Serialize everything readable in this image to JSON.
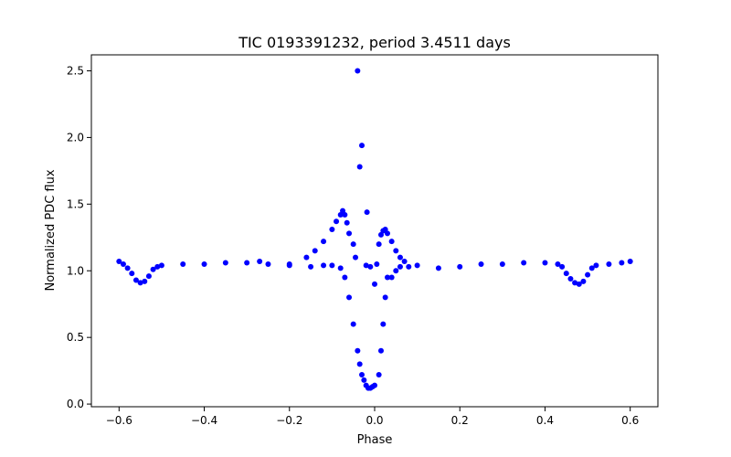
{
  "chart_data": {
    "type": "scatter",
    "title": "TIC 0193391232, period 3.4511 days",
    "xlabel": "Phase",
    "ylabel": "Normalized PDC flux",
    "xlim": [
      -0.665,
      0.665
    ],
    "ylim": [
      -0.02,
      2.62
    ],
    "xticks": [
      -0.6,
      -0.4,
      -0.2,
      0.0,
      0.2,
      0.4,
      0.6
    ],
    "xtick_labels": [
      "−0.6",
      "−0.4",
      "−0.2",
      "0.0",
      "0.2",
      "0.4",
      "0.6"
    ],
    "yticks": [
      0.0,
      0.5,
      1.0,
      1.5,
      2.0,
      2.5
    ],
    "ytick_labels": [
      "0.0",
      "0.5",
      "1.0",
      "1.5",
      "2.0",
      "2.5"
    ],
    "grid": false,
    "legend": false,
    "marker_color": "#0000ff",
    "series": [
      {
        "points": [
          [
            -0.6,
            1.07
          ],
          [
            -0.59,
            1.05
          ],
          [
            -0.58,
            1.02
          ],
          [
            -0.57,
            0.98
          ],
          [
            -0.56,
            0.93
          ],
          [
            -0.55,
            0.91
          ],
          [
            -0.54,
            0.92
          ],
          [
            -0.53,
            0.96
          ],
          [
            -0.52,
            1.01
          ],
          [
            -0.51,
            1.03
          ],
          [
            -0.5,
            1.04
          ],
          [
            -0.45,
            1.05
          ],
          [
            -0.4,
            1.05
          ],
          [
            -0.35,
            1.06
          ],
          [
            -0.3,
            1.06
          ],
          [
            -0.27,
            1.07
          ],
          [
            -0.25,
            1.05
          ],
          [
            -0.2,
            1.04
          ],
          [
            -0.15,
            1.03
          ],
          [
            -0.12,
            1.04
          ],
          [
            -0.1,
            1.04
          ],
          [
            -0.08,
            1.02
          ],
          [
            -0.2,
            1.05
          ],
          [
            -0.16,
            1.1
          ],
          [
            -0.14,
            1.15
          ],
          [
            -0.12,
            1.22
          ],
          [
            -0.1,
            1.31
          ],
          [
            -0.09,
            1.37
          ],
          [
            -0.08,
            1.42
          ],
          [
            -0.075,
            1.45
          ],
          [
            -0.07,
            1.42
          ],
          [
            -0.065,
            1.36
          ],
          [
            -0.06,
            1.28
          ],
          [
            -0.05,
            1.2
          ],
          [
            -0.045,
            1.1
          ],
          [
            -0.07,
            0.95
          ],
          [
            -0.06,
            0.8
          ],
          [
            -0.05,
            0.6
          ],
          [
            -0.04,
            0.4
          ],
          [
            -0.03,
            0.22
          ],
          [
            -0.02,
            0.14
          ],
          [
            -0.01,
            0.12
          ],
          [
            0.0,
            0.14
          ],
          [
            0.01,
            0.22
          ],
          [
            0.015,
            0.4
          ],
          [
            0.02,
            0.6
          ],
          [
            0.025,
            0.8
          ],
          [
            0.03,
            0.95
          ],
          [
            -0.035,
            0.3
          ],
          [
            -0.025,
            0.18
          ],
          [
            -0.015,
            0.12
          ],
          [
            -0.005,
            0.13
          ],
          [
            0.0,
            0.9
          ],
          [
            0.005,
            1.05
          ],
          [
            0.01,
            1.2
          ],
          [
            0.015,
            1.27
          ],
          [
            0.02,
            1.3
          ],
          [
            0.025,
            1.31
          ],
          [
            0.03,
            1.28
          ],
          [
            0.04,
            1.22
          ],
          [
            0.05,
            1.15
          ],
          [
            0.06,
            1.1
          ],
          [
            0.07,
            1.07
          ],
          [
            0.04,
            0.95
          ],
          [
            0.05,
            1.0
          ],
          [
            0.06,
            1.03
          ],
          [
            0.08,
            1.03
          ],
          [
            0.1,
            1.04
          ],
          [
            0.15,
            1.02
          ],
          [
            0.2,
            1.03
          ],
          [
            0.25,
            1.05
          ],
          [
            0.3,
            1.05
          ],
          [
            0.35,
            1.06
          ],
          [
            0.4,
            1.06
          ],
          [
            0.43,
            1.05
          ],
          [
            0.44,
            1.03
          ],
          [
            0.45,
            0.98
          ],
          [
            0.46,
            0.94
          ],
          [
            0.47,
            0.91
          ],
          [
            0.48,
            0.9
          ],
          [
            0.49,
            0.92
          ],
          [
            0.5,
            0.97
          ],
          [
            0.51,
            1.02
          ],
          [
            0.52,
            1.04
          ],
          [
            0.55,
            1.05
          ],
          [
            0.58,
            1.06
          ],
          [
            0.6,
            1.07
          ],
          [
            -0.04,
            2.5
          ],
          [
            -0.03,
            1.94
          ],
          [
            -0.035,
            1.78
          ],
          [
            -0.018,
            1.44
          ],
          [
            -0.02,
            1.04
          ],
          [
            -0.01,
            1.03
          ]
        ]
      }
    ]
  }
}
